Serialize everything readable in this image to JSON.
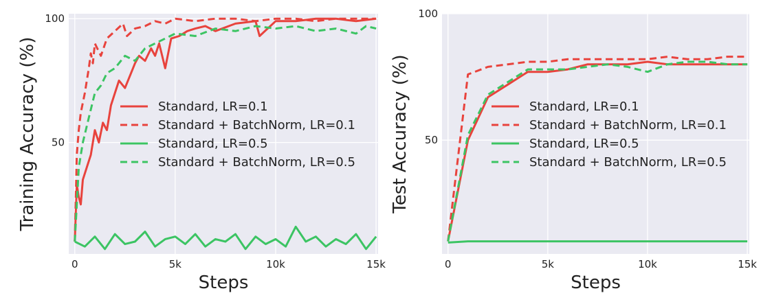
{
  "colors": {
    "red": "#e8433d",
    "green": "#3cc463",
    "panel_bg": "#eaeaf2",
    "grid": "#ffffff"
  },
  "chart_data": [
    {
      "type": "line",
      "xlabel": "Steps",
      "ylabel": "Training Accuracy (%)",
      "xlim": [
        -300,
        15100
      ],
      "ylim": [
        5,
        102
      ],
      "x_ticks": [
        0,
        5000,
        10000,
        15000
      ],
      "x_tick_labels": [
        "0",
        "5k",
        "10k",
        "15k"
      ],
      "y_ticks": [
        50,
        100
      ],
      "y_tick_labels": [
        "50",
        "100"
      ],
      "grid": true,
      "legend_position": "center-right",
      "series": [
        {
          "name": "Standard, LR=0.1",
          "color": "#e8433d",
          "dash": "solid",
          "x": [
            0,
            100,
            200,
            300,
            400,
            600,
            800,
            1000,
            1200,
            1400,
            1600,
            1800,
            2000,
            2200,
            2500,
            2800,
            3000,
            3200,
            3500,
            3800,
            4000,
            4200,
            4500,
            4800,
            5200,
            5600,
            6000,
            6500,
            7000,
            8000,
            9000,
            9200,
            10000,
            11000,
            12000,
            13000,
            14000,
            15000
          ],
          "y": [
            10,
            33,
            28,
            25,
            35,
            40,
            45,
            55,
            50,
            58,
            55,
            65,
            70,
            75,
            72,
            78,
            82,
            85,
            83,
            88,
            85,
            90,
            80,
            92,
            93,
            95,
            96,
            97,
            95,
            98,
            99,
            93,
            99,
            99,
            100,
            100,
            99,
            100
          ]
        },
        {
          "name": "Standard + BatchNorm, LR=0.1",
          "color": "#e8433d",
          "dash": "dashed",
          "x": [
            0,
            100,
            200,
            300,
            500,
            700,
            800,
            900,
            1000,
            1300,
            1600,
            2000,
            2400,
            2600,
            3000,
            3500,
            4000,
            4500,
            5000,
            6000,
            7000,
            8000,
            9000,
            10000,
            11000,
            12000,
            13000,
            14000,
            15000
          ],
          "y": [
            10,
            45,
            55,
            62,
            70,
            80,
            86,
            82,
            90,
            85,
            92,
            95,
            98,
            93,
            96,
            97,
            99,
            98,
            100,
            99,
            100,
            100,
            99,
            100,
            100,
            99,
            100,
            100,
            100
          ]
        },
        {
          "name": "Standard, LR=0.5",
          "color": "#3cc463",
          "dash": "solid",
          "x": [
            0,
            500,
            1000,
            1500,
            2000,
            2500,
            3000,
            3500,
            4000,
            4500,
            5000,
            5500,
            6000,
            6500,
            7000,
            7500,
            8000,
            8500,
            9000,
            9500,
            10000,
            10500,
            11000,
            11500,
            12000,
            12500,
            13000,
            13500,
            14000,
            14500,
            15000
          ],
          "y": [
            10,
            8,
            12,
            7,
            13,
            9,
            10,
            14,
            8,
            11,
            12,
            9,
            13,
            8,
            11,
            10,
            13,
            7,
            12,
            9,
            11,
            8,
            16,
            10,
            12,
            8,
            11,
            9,
            13,
            7,
            12
          ]
        },
        {
          "name": "Standard + BatchNorm, LR=0.5",
          "color": "#3cc463",
          "dash": "dashed",
          "x": [
            0,
            200,
            400,
            700,
            1000,
            1300,
            1600,
            2000,
            2500,
            3000,
            3500,
            4000,
            4500,
            5000,
            6000,
            7000,
            8000,
            9000,
            10000,
            11000,
            12000,
            13000,
            14000,
            14500,
            15000
          ],
          "y": [
            10,
            40,
            50,
            60,
            70,
            73,
            78,
            80,
            85,
            83,
            88,
            90,
            92,
            94,
            93,
            96,
            95,
            97,
            96,
            97,
            95,
            96,
            94,
            97,
            96
          ]
        }
      ]
    },
    {
      "type": "line",
      "xlabel": "Steps",
      "ylabel": "Test Accuracy (%)",
      "xlim": [
        -300,
        15100
      ],
      "ylim": [
        5,
        100
      ],
      "x_ticks": [
        0,
        5000,
        10000,
        15000
      ],
      "x_tick_labels": [
        "0",
        "5k",
        "10k",
        "15k"
      ],
      "y_ticks": [
        50,
        100
      ],
      "y_tick_labels": [
        "50",
        "100"
      ],
      "grid": true,
      "legend_position": "center-right",
      "series": [
        {
          "name": "Standard, LR=0.1",
          "color": "#e8433d",
          "dash": "solid",
          "x": [
            0,
            1000,
            2000,
            3000,
            4000,
            5000,
            6000,
            7000,
            8000,
            9000,
            10000,
            11000,
            12000,
            13000,
            14000,
            15000
          ],
          "y": [
            10,
            50,
            67,
            72,
            77,
            77,
            78,
            80,
            80,
            80,
            81,
            80,
            80,
            80,
            80,
            80
          ]
        },
        {
          "name": "Standard + BatchNorm, LR=0.1",
          "color": "#e8433d",
          "dash": "dashed",
          "x": [
            0,
            1000,
            2000,
            3000,
            4000,
            5000,
            6000,
            7000,
            8000,
            9000,
            10000,
            11000,
            12000,
            13000,
            14000,
            15000
          ],
          "y": [
            10,
            76,
            79,
            80,
            81,
            81,
            82,
            82,
            82,
            82,
            82,
            83,
            82,
            82,
            83,
            83
          ]
        },
        {
          "name": "Standard, LR=0.5",
          "color": "#3cc463",
          "dash": "solid",
          "x": [
            0,
            1000,
            2000,
            3000,
            4000,
            5000,
            6000,
            7000,
            8000,
            9000,
            10000,
            11000,
            12000,
            13000,
            14000,
            15000
          ],
          "y": [
            9.5,
            10,
            10,
            10,
            10,
            10,
            10,
            10,
            10,
            10,
            10,
            10,
            10,
            10,
            10,
            10
          ]
        },
        {
          "name": "Standard + BatchNorm, LR=0.5",
          "color": "#3cc463",
          "dash": "dashed",
          "x": [
            0,
            1000,
            2000,
            3000,
            4000,
            5000,
            6000,
            7000,
            8000,
            9000,
            10000,
            11000,
            12000,
            13000,
            14000,
            15000
          ],
          "y": [
            10,
            52,
            68,
            73,
            78,
            78,
            78,
            79,
            80,
            79,
            77,
            80,
            81,
            81,
            80,
            80
          ]
        }
      ]
    }
  ]
}
